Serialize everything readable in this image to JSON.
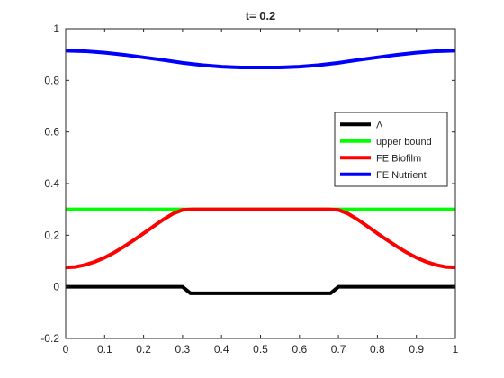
{
  "chart_data": {
    "type": "line",
    "title": "t=   0.2",
    "xlabel": "",
    "ylabel": "",
    "xlim": [
      0,
      1
    ],
    "ylim": [
      -0.2,
      1
    ],
    "xticks": [
      "0",
      "0.1",
      "0.2",
      "0.3",
      "0.4",
      "0.5",
      "0.6",
      "0.7",
      "0.8",
      "0.9",
      "1"
    ],
    "yticks": [
      "-0.2",
      "0",
      "0.2",
      "0.4",
      "0.6",
      "0.8",
      "1"
    ],
    "grid": false,
    "legend_position": "top-right",
    "series": [
      {
        "name": "Λ",
        "color": "#000000",
        "x": [
          0,
          0.3,
          0.32,
          0.68,
          0.7,
          1
        ],
        "values": [
          0,
          0,
          -0.025,
          -0.025,
          0,
          0
        ]
      },
      {
        "name": "upper bound",
        "color": "#00ff00",
        "x": [
          0,
          1
        ],
        "values": [
          0.3,
          0.3
        ]
      },
      {
        "name": "FE Biofilm",
        "color": "#ff0000",
        "x": [
          0,
          0.025,
          0.05,
          0.075,
          0.1,
          0.125,
          0.15,
          0.175,
          0.2,
          0.225,
          0.25,
          0.275,
          0.3,
          0.325,
          0.35,
          0.4,
          0.5,
          0.6,
          0.65,
          0.675,
          0.7,
          0.725,
          0.75,
          0.775,
          0.8,
          0.825,
          0.85,
          0.875,
          0.9,
          0.925,
          0.95,
          0.975,
          1
        ],
        "values": [
          0.075,
          0.077,
          0.085,
          0.097,
          0.113,
          0.133,
          0.156,
          0.181,
          0.207,
          0.234,
          0.26,
          0.283,
          0.298,
          0.3,
          0.3,
          0.3,
          0.3,
          0.3,
          0.3,
          0.3,
          0.298,
          0.283,
          0.26,
          0.234,
          0.207,
          0.181,
          0.156,
          0.133,
          0.113,
          0.097,
          0.085,
          0.077,
          0.075
        ]
      },
      {
        "name": "FE Nutrient",
        "color": "#0000ff",
        "x": [
          0,
          0.05,
          0.1,
          0.15,
          0.2,
          0.25,
          0.3,
          0.35,
          0.4,
          0.45,
          0.5,
          0.55,
          0.6,
          0.65,
          0.7,
          0.75,
          0.8,
          0.85,
          0.9,
          0.95,
          1
        ],
        "values": [
          0.915,
          0.913,
          0.907,
          0.899,
          0.889,
          0.879,
          0.868,
          0.859,
          0.853,
          0.85,
          0.85,
          0.85,
          0.853,
          0.859,
          0.868,
          0.879,
          0.889,
          0.899,
          0.907,
          0.913,
          0.915
        ]
      }
    ]
  }
}
